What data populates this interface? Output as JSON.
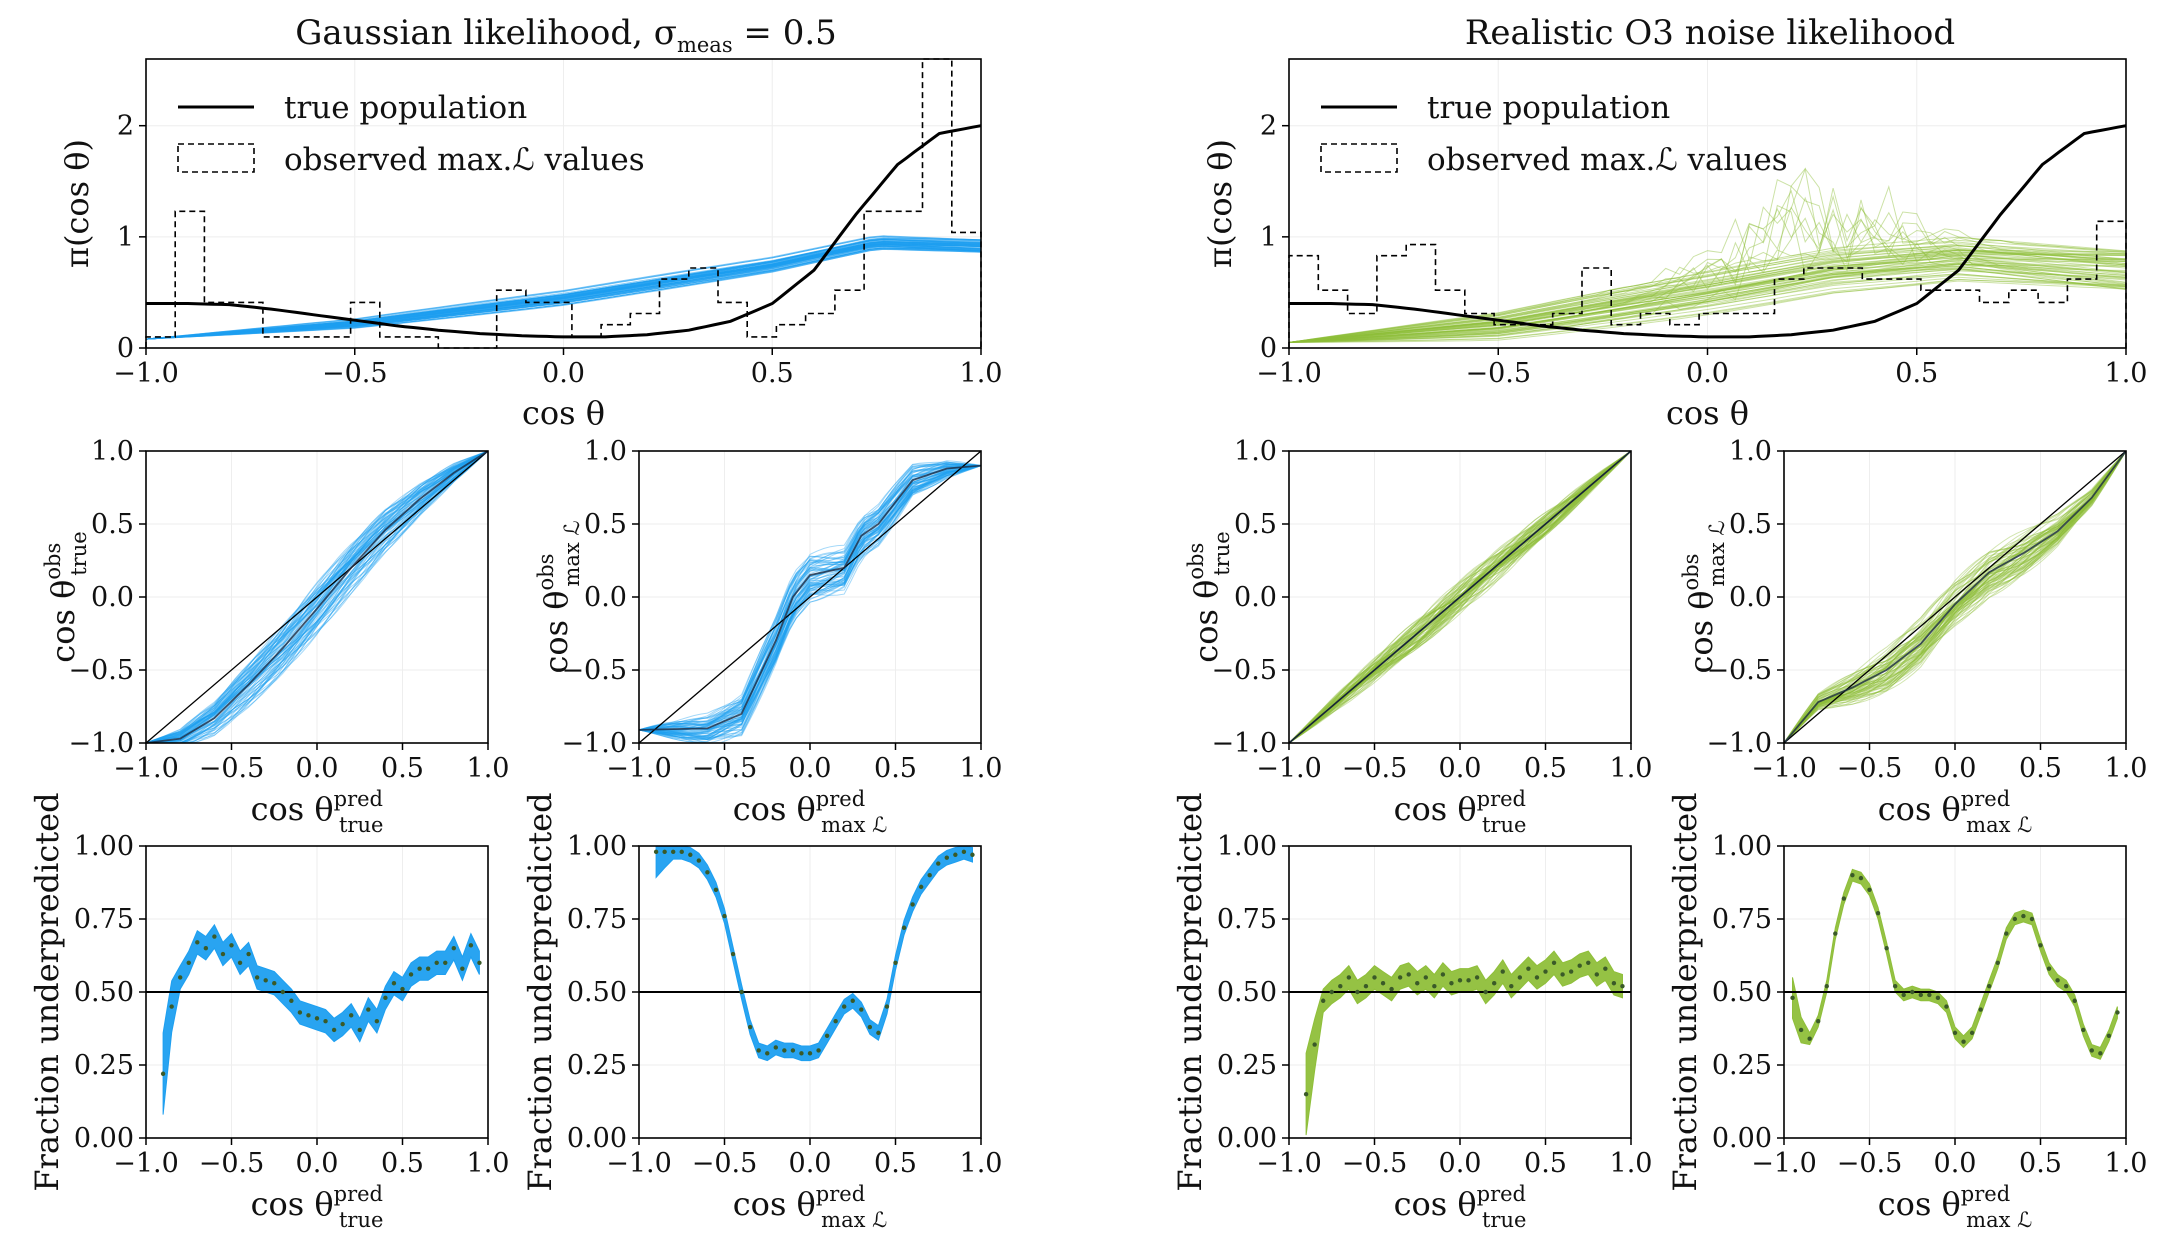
{
  "left_title": "Gaussian likelihood, σ",
  "left_title_sub": "meas",
  "left_title_tail": " = 0.5",
  "right_title": "Realistic O3 noise likelihood",
  "legend": {
    "true_population": "true population",
    "observed_prefix": "observed max.",
    "observed_script": "ℒ",
    "observed_suffix": " values"
  },
  "labels": {
    "pi_cos": "π(cos θ)",
    "cos_theta": "cos θ",
    "cos_theta_text": "cos θ",
    "sup_obs": "obs",
    "sup_pred": "pred",
    "sub_true": "true",
    "sub_maxL": "max ℒ",
    "fraction": "Fraction underpredicted"
  },
  "ticks": {
    "top_x": [
      "−1.0",
      "−0.5",
      "0.0",
      "0.5",
      "1.0"
    ],
    "top_y": [
      "0",
      "1",
      "2"
    ],
    "pp": [
      "−1.0",
      "−0.5",
      "0.0",
      "0.5",
      "1.0"
    ],
    "frac_y": [
      "0.00",
      "0.25",
      "0.50",
      "0.75",
      "1.00"
    ]
  },
  "colors": {
    "blue": "#1e9ff0",
    "green": "#8fbf3a",
    "black": "#000000",
    "marker": "#3a5a28"
  },
  "chart_data": [
    {
      "id": "top-left",
      "type": "line",
      "title": "Gaussian likelihood, σmeas = 0.5",
      "xlabel": "cos θ",
      "ylabel": "π(cos θ)",
      "xlim": [
        -1,
        1
      ],
      "ylim": [
        0,
        2.6
      ],
      "true_population": {
        "x": [
          -1.0,
          -0.9,
          -0.8,
          -0.7,
          -0.6,
          -0.5,
          -0.4,
          -0.3,
          -0.2,
          -0.1,
          0.0,
          0.1,
          0.2,
          0.3,
          0.4,
          0.5,
          0.6,
          0.7,
          0.8,
          0.9,
          1.0
        ],
        "y": [
          0.4,
          0.4,
          0.39,
          0.35,
          0.3,
          0.25,
          0.2,
          0.16,
          0.13,
          0.11,
          0.1,
          0.1,
          0.12,
          0.16,
          0.24,
          0.4,
          0.7,
          1.2,
          1.65,
          1.93,
          2.0
        ]
      },
      "observed_hist": {
        "edges": [
          -1.0,
          -0.93,
          -0.86,
          -0.72,
          -0.65,
          -0.51,
          -0.44,
          -0.37,
          -0.3,
          -0.16,
          -0.09,
          0.02,
          0.09,
          0.16,
          0.23,
          0.3,
          0.37,
          0.44,
          0.51,
          0.58,
          0.65,
          0.72,
          0.79,
          0.86,
          0.93,
          1.0
        ],
        "counts": [
          0.1,
          1.23,
          0.41,
          0.1,
          0.1,
          0.41,
          0.1,
          0.1,
          0.0,
          0.52,
          0.41,
          0.1,
          0.21,
          0.31,
          0.62,
          0.72,
          0.41,
          0.1,
          0.21,
          0.31,
          0.52,
          1.23,
          1.23,
          2.6,
          1.04
        ]
      },
      "posterior_draws": {
        "n": 60,
        "mean": {
          "x": [
            -1.0,
            -0.5,
            0.0,
            0.5,
            0.75,
            1.0
          ],
          "y": [
            0.08,
            0.22,
            0.45,
            0.75,
            0.95,
            0.92
          ]
        }
      }
    },
    {
      "id": "top-right",
      "type": "line",
      "title": "Realistic O3 noise likelihood",
      "xlabel": "cos θ",
      "ylabel": "π(cos θ)",
      "xlim": [
        -1,
        1
      ],
      "ylim": [
        0,
        2.6
      ],
      "true_population": {
        "x": [
          -1.0,
          -0.9,
          -0.8,
          -0.7,
          -0.6,
          -0.5,
          -0.4,
          -0.3,
          -0.2,
          -0.1,
          0.0,
          0.1,
          0.2,
          0.3,
          0.4,
          0.5,
          0.6,
          0.7,
          0.8,
          0.9,
          1.0
        ],
        "y": [
          0.4,
          0.4,
          0.39,
          0.35,
          0.3,
          0.25,
          0.2,
          0.16,
          0.13,
          0.11,
          0.1,
          0.1,
          0.12,
          0.16,
          0.24,
          0.4,
          0.7,
          1.2,
          1.65,
          1.93,
          2.0
        ]
      },
      "observed_hist": {
        "edges": [
          -1.0,
          -0.93,
          -0.86,
          -0.79,
          -0.72,
          -0.65,
          -0.58,
          -0.51,
          -0.44,
          -0.37,
          -0.3,
          -0.23,
          -0.16,
          -0.09,
          -0.02,
          0.16,
          0.23,
          0.37,
          0.51,
          0.58,
          0.65,
          0.72,
          0.79,
          0.86,
          0.93,
          1.0
        ],
        "counts": [
          0.83,
          0.52,
          0.31,
          0.83,
          0.93,
          0.52,
          0.31,
          0.21,
          0.21,
          0.31,
          0.72,
          0.21,
          0.31,
          0.21,
          0.31,
          0.62,
          0.72,
          0.62,
          0.52,
          0.52,
          0.41,
          0.52,
          0.41,
          0.62,
          1.14
        ]
      },
      "posterior_draws": {
        "n": 60,
        "mean": {
          "x": [
            -1.0,
            -0.5,
            0.0,
            0.3,
            0.6,
            1.0
          ],
          "y": [
            0.05,
            0.2,
            0.5,
            0.7,
            0.8,
            0.7
          ]
        }
      }
    },
    {
      "id": "pp-true-gauss",
      "type": "line",
      "xlabel": "cos θ_true^pred",
      "ylabel": "cos θ_true^obs",
      "xlim": [
        -1,
        1
      ],
      "ylim": [
        -1,
        1
      ],
      "median": {
        "x": [
          -1.0,
          -0.8,
          -0.6,
          -0.4,
          -0.2,
          0.0,
          0.2,
          0.4,
          0.6,
          0.8,
          1.0
        ],
        "y": [
          -1.0,
          -0.97,
          -0.83,
          -0.6,
          -0.35,
          -0.08,
          0.2,
          0.46,
          0.67,
          0.85,
          1.0
        ]
      }
    },
    {
      "id": "pp-maxL-gauss",
      "type": "line",
      "xlabel": "cos θ_max ℒ^pred",
      "ylabel": "cos θ_max ℒ^obs",
      "xlim": [
        -1,
        1
      ],
      "ylim": [
        -1,
        1
      ],
      "median": {
        "x": [
          -1.0,
          -0.6,
          -0.4,
          -0.3,
          -0.2,
          -0.1,
          0.0,
          0.2,
          0.3,
          0.4,
          0.6,
          0.8,
          1.0
        ],
        "y": [
          -0.91,
          -0.9,
          -0.8,
          -0.55,
          -0.3,
          0.0,
          0.15,
          0.2,
          0.42,
          0.5,
          0.8,
          0.88,
          0.9
        ]
      }
    },
    {
      "id": "pp-true-o3",
      "type": "line",
      "xlabel": "cos θ_true^pred",
      "ylabel": "cos θ_true^obs",
      "xlim": [
        -1,
        1
      ],
      "ylim": [
        -1,
        1
      ],
      "median": {
        "x": [
          -1.0,
          -0.5,
          0.0,
          0.5,
          1.0
        ],
        "y": [
          -1.0,
          -0.5,
          0.0,
          0.5,
          1.0
        ]
      }
    },
    {
      "id": "pp-maxL-o3",
      "type": "line",
      "xlabel": "cos θ_max ℒ^pred",
      "ylabel": "cos θ_max ℒ^obs",
      "xlim": [
        -1,
        1
      ],
      "ylim": [
        -1,
        1
      ],
      "median": {
        "x": [
          -1.0,
          -0.8,
          -0.6,
          -0.4,
          -0.2,
          0.0,
          0.2,
          0.4,
          0.6,
          0.8,
          1.0
        ],
        "y": [
          -1.0,
          -0.72,
          -0.62,
          -0.5,
          -0.32,
          -0.05,
          0.17,
          0.3,
          0.45,
          0.68,
          1.0
        ]
      }
    },
    {
      "id": "frac-true-gauss",
      "type": "line",
      "xlabel": "cos θ_true^pred",
      "ylabel": "Fraction underpredicted",
      "xlim": [
        -1,
        1
      ],
      "ylim": [
        0,
        1
      ],
      "reference": 0.5,
      "x": [
        -0.9,
        -0.85,
        -0.8,
        -0.75,
        -0.7,
        -0.65,
        -0.6,
        -0.55,
        -0.5,
        -0.45,
        -0.4,
        -0.35,
        -0.3,
        -0.25,
        -0.2,
        -0.15,
        -0.1,
        -0.05,
        0.0,
        0.05,
        0.1,
        0.15,
        0.2,
        0.25,
        0.3,
        0.35,
        0.4,
        0.45,
        0.5,
        0.55,
        0.6,
        0.65,
        0.7,
        0.75,
        0.8,
        0.85,
        0.9,
        0.95
      ],
      "y": [
        0.22,
        0.45,
        0.55,
        0.6,
        0.67,
        0.65,
        0.69,
        0.63,
        0.66,
        0.6,
        0.63,
        0.55,
        0.54,
        0.53,
        0.5,
        0.47,
        0.43,
        0.42,
        0.41,
        0.4,
        0.37,
        0.39,
        0.42,
        0.37,
        0.44,
        0.4,
        0.48,
        0.53,
        0.51,
        0.56,
        0.58,
        0.58,
        0.6,
        0.6,
        0.65,
        0.58,
        0.66,
        0.6
      ],
      "band_halfwidth": 0.04
    },
    {
      "id": "frac-maxL-gauss",
      "type": "line",
      "xlabel": "cos θ_max ℒ^pred",
      "ylabel": "Fraction underpredicted",
      "xlim": [
        -1,
        1
      ],
      "ylim": [
        0,
        1
      ],
      "reference": 0.5,
      "x": [
        -0.9,
        -0.85,
        -0.8,
        -0.75,
        -0.7,
        -0.65,
        -0.6,
        -0.55,
        -0.5,
        -0.45,
        -0.4,
        -0.35,
        -0.3,
        -0.25,
        -0.2,
        -0.15,
        -0.1,
        -0.05,
        0.0,
        0.05,
        0.1,
        0.15,
        0.2,
        0.25,
        0.3,
        0.35,
        0.4,
        0.45,
        0.5,
        0.55,
        0.6,
        0.65,
        0.7,
        0.75,
        0.8,
        0.85,
        0.9,
        0.95
      ],
      "y": [
        0.98,
        0.98,
        0.98,
        0.98,
        0.97,
        0.95,
        0.91,
        0.85,
        0.76,
        0.63,
        0.5,
        0.38,
        0.3,
        0.29,
        0.31,
        0.3,
        0.3,
        0.29,
        0.29,
        0.3,
        0.35,
        0.4,
        0.45,
        0.47,
        0.44,
        0.38,
        0.36,
        0.45,
        0.6,
        0.72,
        0.8,
        0.86,
        0.9,
        0.94,
        0.96,
        0.97,
        0.98,
        0.97
      ],
      "band_halfwidth": 0.025
    },
    {
      "id": "frac-true-o3",
      "type": "line",
      "xlabel": "cos θ_true^pred",
      "ylabel": "Fraction underpredicted",
      "xlim": [
        -1,
        1
      ],
      "ylim": [
        0,
        1
      ],
      "reference": 0.5,
      "x": [
        -0.9,
        -0.85,
        -0.8,
        -0.75,
        -0.7,
        -0.65,
        -0.6,
        -0.55,
        -0.5,
        -0.45,
        -0.4,
        -0.35,
        -0.3,
        -0.25,
        -0.2,
        -0.15,
        -0.1,
        -0.05,
        0.0,
        0.05,
        0.1,
        0.15,
        0.2,
        0.25,
        0.3,
        0.35,
        0.4,
        0.45,
        0.5,
        0.55,
        0.6,
        0.65,
        0.7,
        0.75,
        0.8,
        0.85,
        0.9,
        0.95
      ],
      "y": [
        0.15,
        0.32,
        0.47,
        0.5,
        0.52,
        0.55,
        0.5,
        0.52,
        0.55,
        0.53,
        0.51,
        0.55,
        0.56,
        0.53,
        0.55,
        0.52,
        0.56,
        0.53,
        0.54,
        0.54,
        0.55,
        0.5,
        0.53,
        0.57,
        0.52,
        0.55,
        0.58,
        0.55,
        0.57,
        0.6,
        0.56,
        0.57,
        0.59,
        0.6,
        0.56,
        0.58,
        0.53,
        0.52
      ],
      "band_halfwidth": 0.04
    },
    {
      "id": "frac-maxL-o3",
      "type": "line",
      "xlabel": "cos θ_max ℒ^pred",
      "ylabel": "Fraction underpredicted",
      "xlim": [
        -1,
        1
      ],
      "ylim": [
        0,
        1
      ],
      "reference": 0.5,
      "x": [
        -0.95,
        -0.9,
        -0.85,
        -0.8,
        -0.75,
        -0.7,
        -0.65,
        -0.6,
        -0.55,
        -0.5,
        -0.45,
        -0.4,
        -0.35,
        -0.3,
        -0.25,
        -0.2,
        -0.15,
        -0.1,
        -0.05,
        0.0,
        0.05,
        0.1,
        0.15,
        0.2,
        0.25,
        0.3,
        0.35,
        0.4,
        0.45,
        0.5,
        0.55,
        0.6,
        0.65,
        0.7,
        0.75,
        0.8,
        0.85,
        0.9,
        0.95
      ],
      "y": [
        0.48,
        0.37,
        0.34,
        0.4,
        0.52,
        0.7,
        0.82,
        0.9,
        0.89,
        0.85,
        0.77,
        0.65,
        0.52,
        0.49,
        0.5,
        0.49,
        0.49,
        0.48,
        0.45,
        0.36,
        0.33,
        0.36,
        0.44,
        0.52,
        0.6,
        0.7,
        0.75,
        0.76,
        0.75,
        0.66,
        0.58,
        0.54,
        0.52,
        0.47,
        0.37,
        0.3,
        0.29,
        0.35,
        0.43
      ],
      "band_halfwidth": 0.02
    }
  ]
}
